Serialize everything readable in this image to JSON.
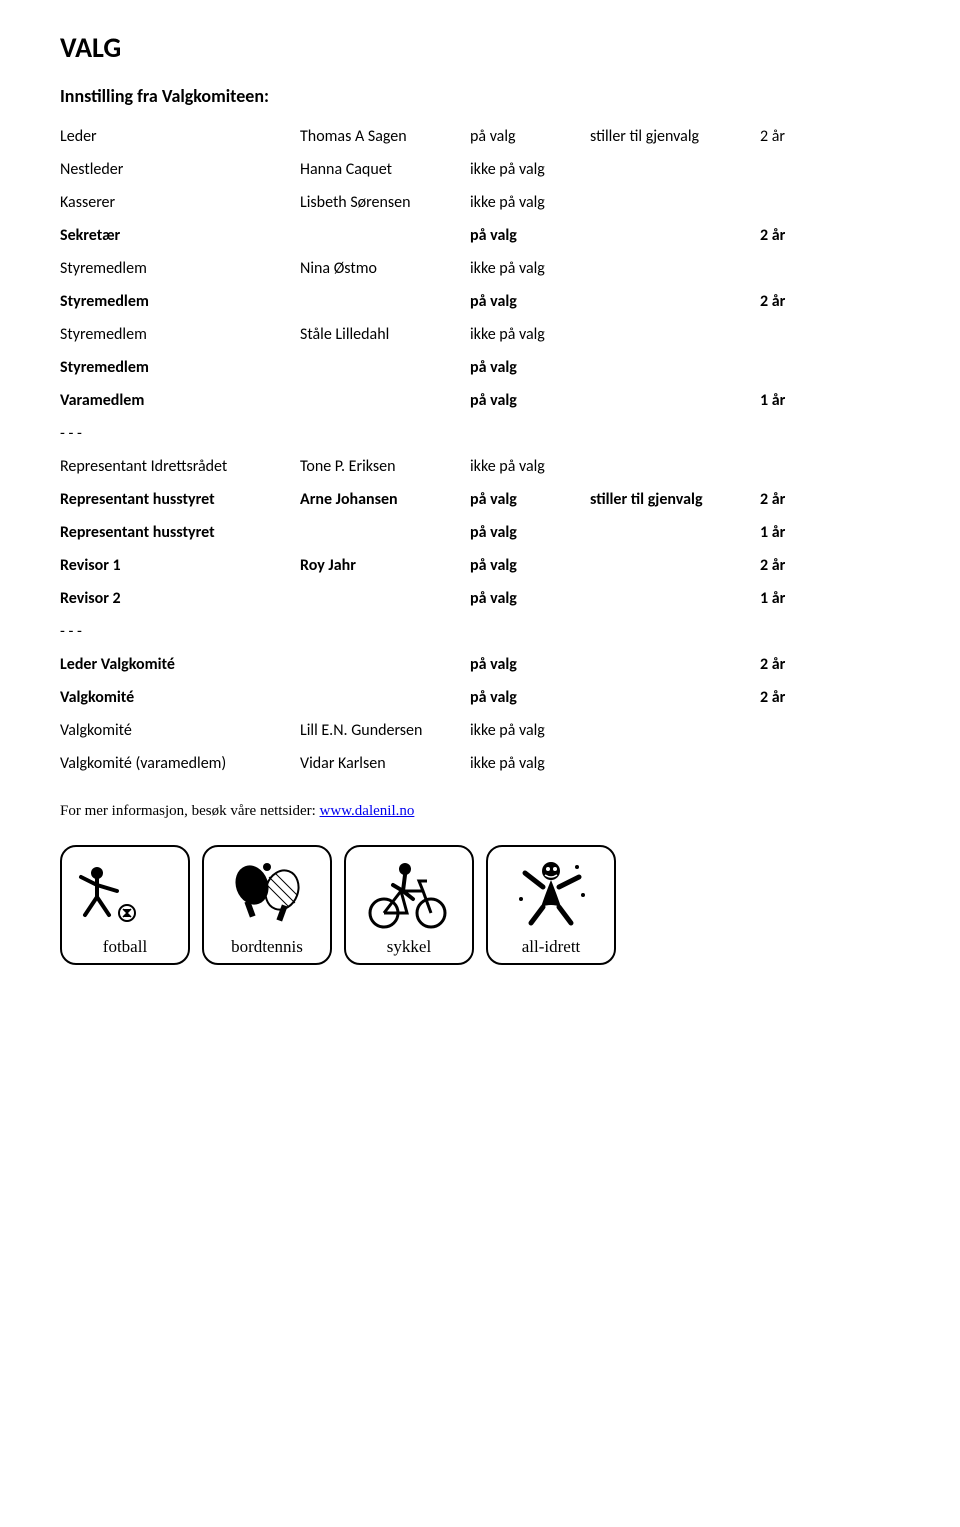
{
  "title": "VALG",
  "subtitle": "Innstilling fra Valgkomiteen:",
  "rows": [
    {
      "role": "Leder",
      "name": "Thomas A Sagen",
      "status": "på valg",
      "note": "stiller til gjenvalg",
      "years": "2 år",
      "bold": false
    },
    {
      "role": "Nestleder",
      "name": "Hanna Caquet",
      "status": "ikke på valg",
      "note": "",
      "years": "",
      "bold": false
    },
    {
      "role": "Kasserer",
      "name": "Lisbeth Sørensen",
      "status": "ikke på valg",
      "note": "",
      "years": "",
      "bold": false
    },
    {
      "role": "Sekretær",
      "name": "",
      "status": "på valg",
      "note": "",
      "years": "2 år",
      "bold": true
    },
    {
      "role": "Styremedlem",
      "name": "Nina Østmo",
      "status": "ikke på valg",
      "note": "",
      "years": "",
      "bold": false
    },
    {
      "role": "Styremedlem",
      "name": "",
      "status": "på valg",
      "note": "",
      "years": "2 år",
      "bold": true
    },
    {
      "role": "Styremedlem",
      "name": "Ståle Lilledahl",
      "status": "ikke på valg",
      "note": "",
      "years": "",
      "bold": false
    },
    {
      "role": "Styremedlem",
      "name": "",
      "status": "på valg",
      "note": "",
      "years": "",
      "bold": true
    }
  ],
  "rows2": [
    {
      "role": "Varamedlem",
      "name": "",
      "status": "på valg",
      "note": "",
      "years": "1 år",
      "bold": true
    }
  ],
  "sep": "- - -",
  "rows3": [
    {
      "role": "Representant Idrettsrådet",
      "name": "Tone P. Eriksen",
      "status": "ikke på valg",
      "note": "",
      "years": "",
      "bold": false
    },
    {
      "role": "Representant husstyret",
      "name": "Arne Johansen",
      "status": "på valg",
      "note": "stiller til gjenvalg",
      "years": "2 år",
      "bold": true
    },
    {
      "role": "Representant husstyret",
      "name": "",
      "status": "på valg",
      "note": "",
      "years": "1 år",
      "bold": true
    },
    {
      "role": "Revisor 1",
      "name": "Roy Jahr",
      "status": "på valg",
      "note": "",
      "years": "2 år",
      "bold": true
    },
    {
      "role": "Revisor 2",
      "name": "",
      "status": "på valg",
      "note": "",
      "years": "1 år",
      "bold": true
    }
  ],
  "rows4": [
    {
      "role": "Leder Valgkomité",
      "name": "",
      "status": "på valg",
      "note": "",
      "years": "2 år",
      "bold": true
    },
    {
      "role": "Valgkomité",
      "name": "",
      "status": "på valg",
      "note": "",
      "years": "2 år",
      "bold": true
    },
    {
      "role": "Valgkomité",
      "name": "Lill E.N. Gundersen",
      "status": "ikke på valg",
      "note": "",
      "years": "",
      "bold": false
    },
    {
      "role": "Valgkomité (varamedlem)",
      "name": "Vidar Karlsen",
      "status": "ikke på valg",
      "note": "",
      "years": "",
      "bold": false
    }
  ],
  "footer_text": "For mer informasjon, besøk våre nettsider: ",
  "footer_link": "www.dalenil.no",
  "icons": [
    "fotball",
    "bordtennis",
    "sykkel",
    "all-idrett"
  ]
}
